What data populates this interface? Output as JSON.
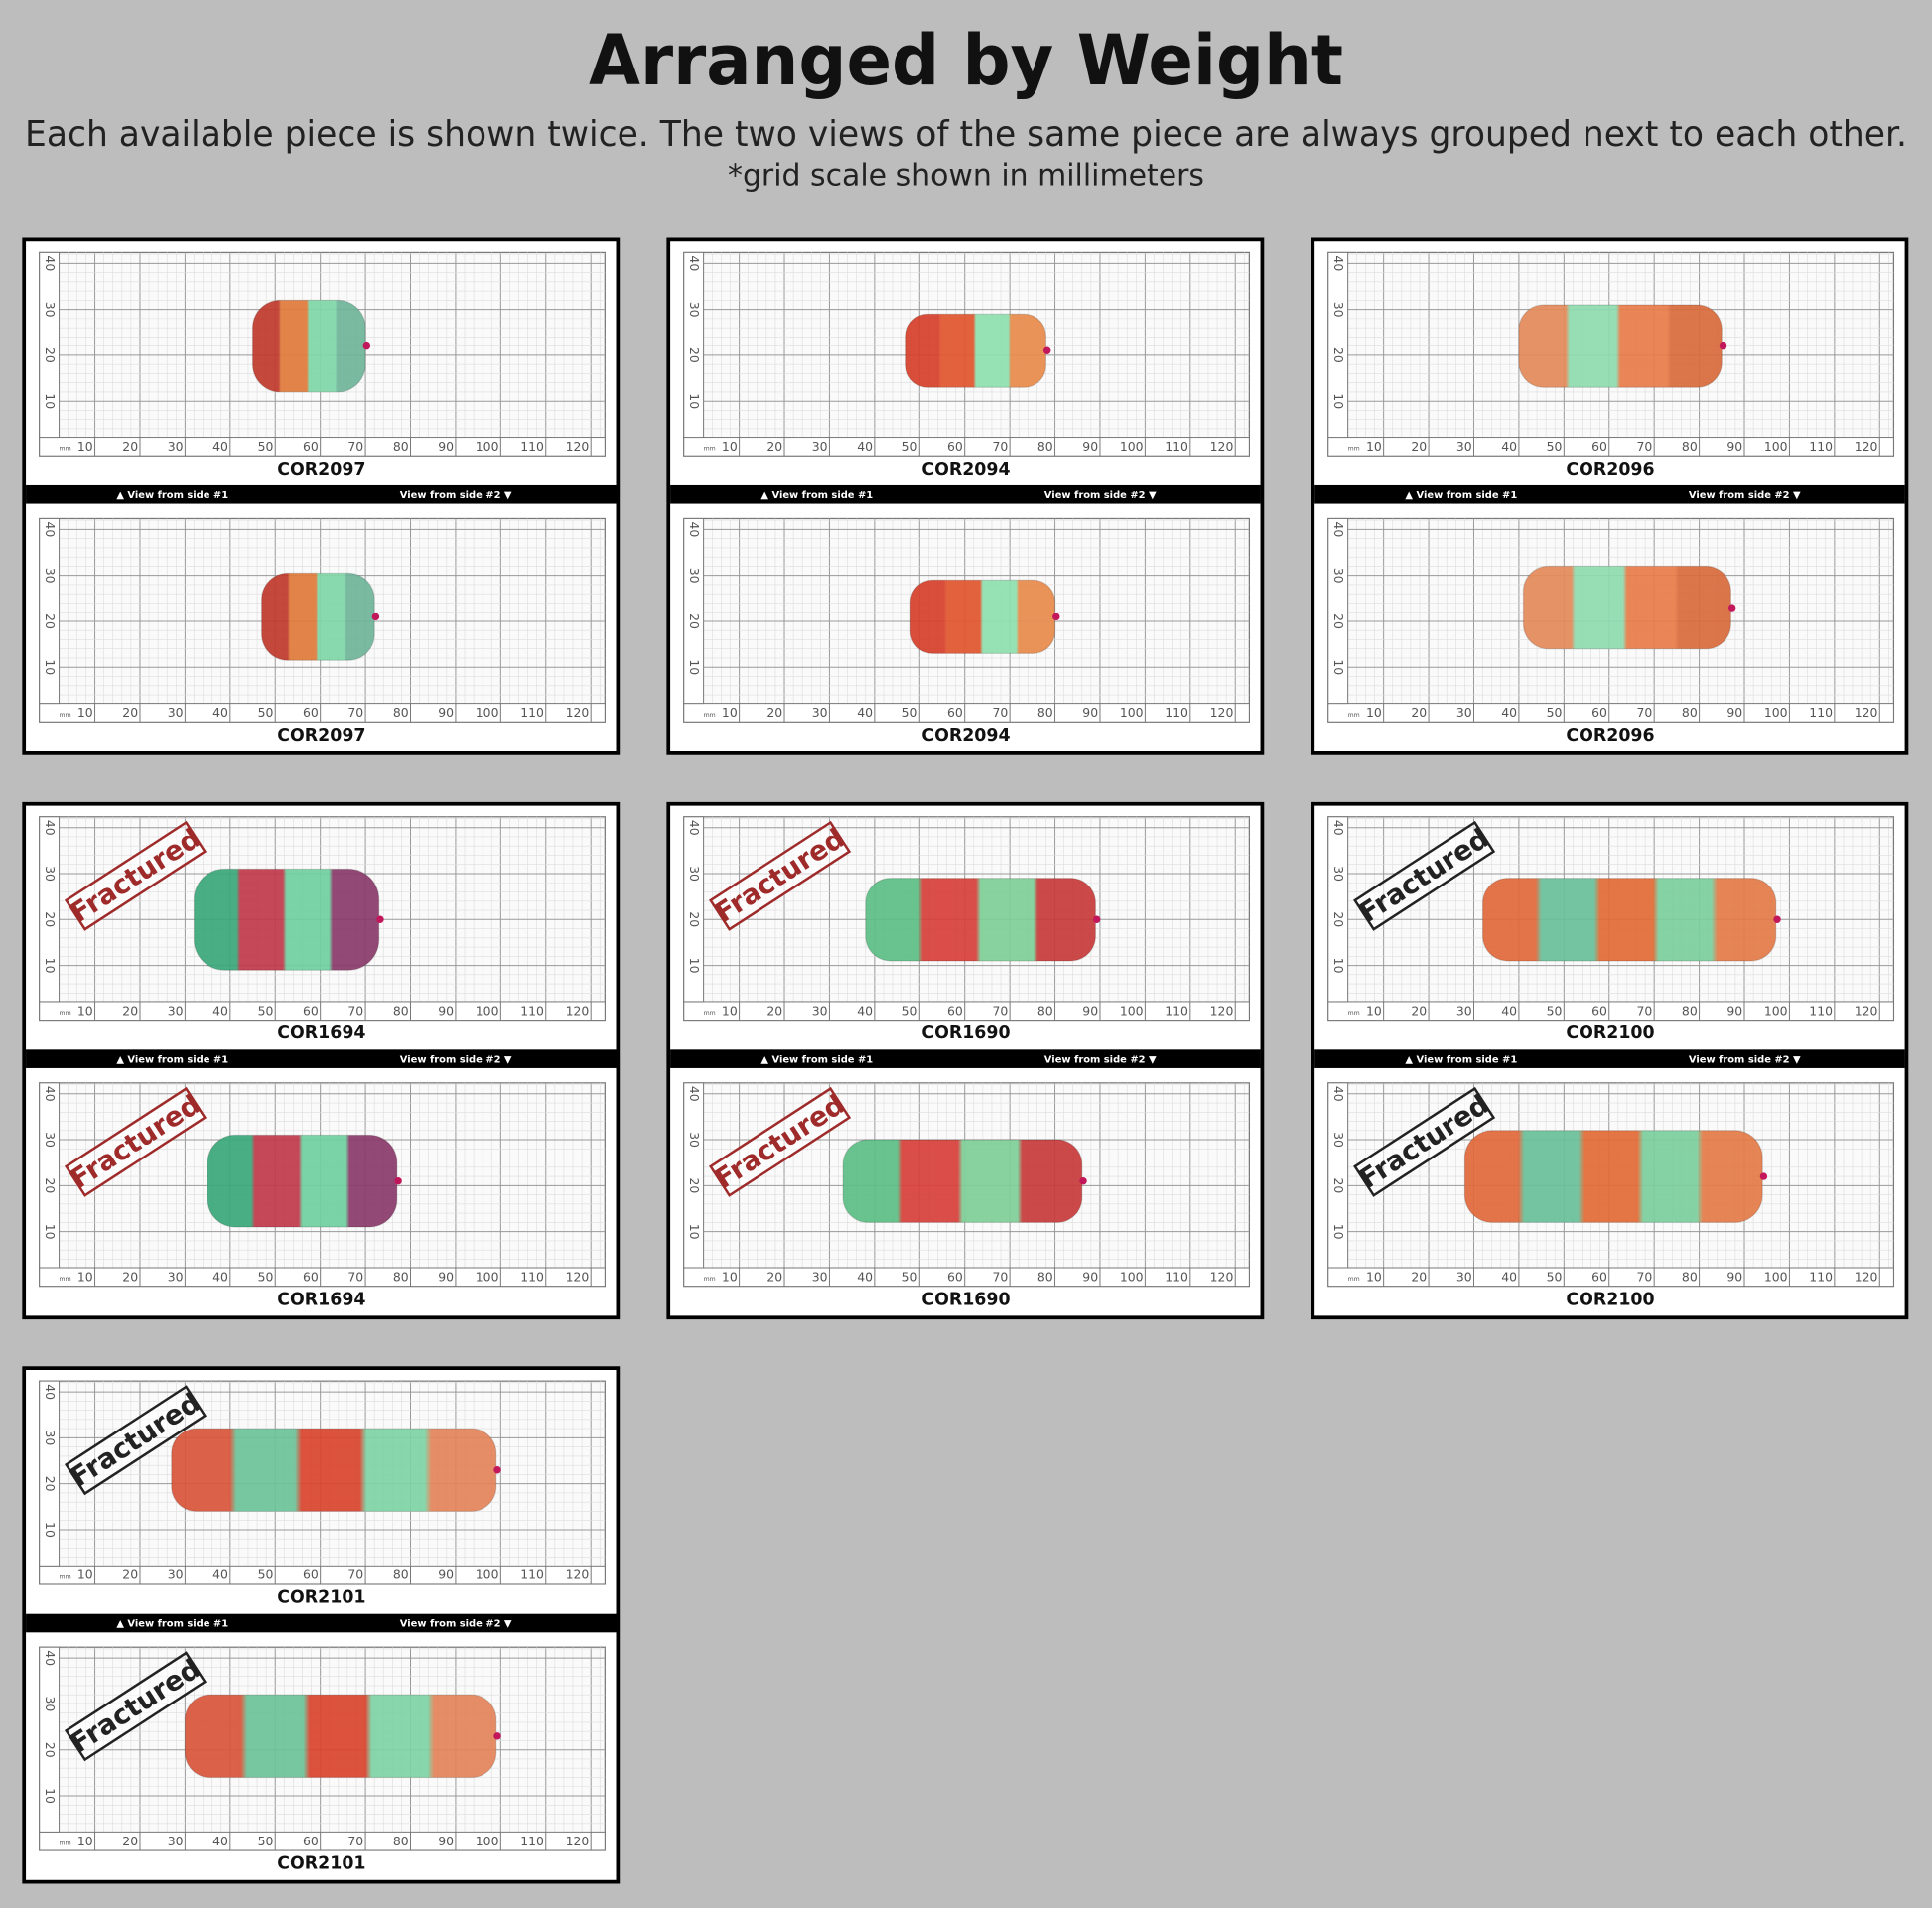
{
  "header": {
    "title": "Arranged by Weight",
    "subtitle": "Each available piece is shown twice. The two views of the same piece are always grouped next to each other.",
    "note": "*grid scale shown in millimeters"
  },
  "ruler": {
    "unit": "mm",
    "x_labels": [
      "10",
      "20",
      "30",
      "40",
      "50",
      "60",
      "70",
      "80",
      "90",
      "100",
      "110",
      "120"
    ],
    "y_labels": [
      "10",
      "20",
      "30",
      "40"
    ]
  },
  "view_labels": {
    "side1": "▲ View from side #1",
    "side2": "View from side #2 ▼"
  },
  "stamp": "Fractured",
  "items": [
    {
      "code": "COR2097"
    },
    {
      "code": "COR2094"
    },
    {
      "code": "COR2096"
    },
    {
      "code": "COR1694",
      "fractured": true,
      "stamp_color": "#9e2a2a"
    },
    {
      "code": "COR1690",
      "fractured": true,
      "stamp_color": "#9e2a2a"
    },
    {
      "code": "COR2100",
      "fractured": true,
      "stamp_color": "#222222"
    },
    {
      "code": "COR2101",
      "fractured": true,
      "stamp_color": "#222222"
    }
  ]
}
